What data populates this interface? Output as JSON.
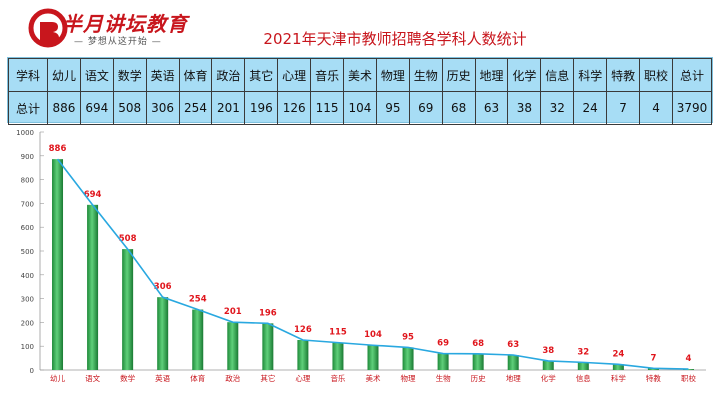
{
  "brand": {
    "name": "半月讲坛教育",
    "slogan": "梦想从这开始"
  },
  "title": "2021年天津市教师招聘各学科人数统计",
  "table": {
    "row1_head": "学科",
    "row2_head": "总计",
    "subjects": [
      "幼儿",
      "语文",
      "数学",
      "英语",
      "体育",
      "政治",
      "其它",
      "心理",
      "音乐",
      "美术",
      "物理",
      "生物",
      "历史",
      "地理",
      "化学",
      "信息",
      "科学",
      "特教",
      "职校"
    ],
    "values": [
      "886",
      "694",
      "508",
      "306",
      "254",
      "201",
      "196",
      "126",
      "115",
      "104",
      "95",
      "69",
      "68",
      "63",
      "38",
      "32",
      "24",
      "7",
      "4"
    ],
    "total_label": "总计",
    "total_value": "3790"
  },
  "chart_data": {
    "type": "bar",
    "categories": [
      "幼儿",
      "语文",
      "数学",
      "英语",
      "体育",
      "政治",
      "其它",
      "心理",
      "音乐",
      "美术",
      "物理",
      "生物",
      "历史",
      "地理",
      "化学",
      "信息",
      "科学",
      "特教",
      "职校"
    ],
    "values": [
      886,
      694,
      508,
      306,
      254,
      201,
      196,
      126,
      115,
      104,
      95,
      69,
      68,
      63,
      38,
      32,
      24,
      7,
      4
    ],
    "ylim": [
      0,
      1000
    ],
    "yticks": [
      0,
      100,
      200,
      300,
      400,
      500,
      600,
      700,
      800,
      900,
      1000
    ],
    "overlay_line": true,
    "bar_color": "#2aa84a",
    "line_color": "#29a8e0",
    "label_color": "#e0161d"
  }
}
